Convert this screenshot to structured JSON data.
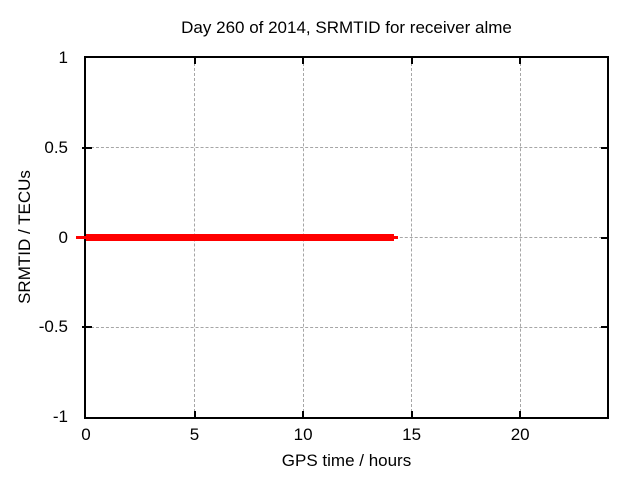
{
  "chart_data": {
    "type": "line",
    "title": "Day 260 of 2014, SRMTID for receiver alme",
    "xlabel": "GPS time / hours",
    "ylabel": "SRMTID / TECUs",
    "xlim": [
      0,
      24
    ],
    "ylim": [
      -1,
      1
    ],
    "xticks": [
      0,
      5,
      10,
      15,
      20
    ],
    "yticks": [
      1,
      0.5,
      0,
      -0.5,
      -1
    ],
    "xtick_labels": [
      "0",
      "5",
      "10",
      "15",
      "20"
    ],
    "ytick_labels": [
      "1",
      "0.5",
      "0",
      "-0.5",
      "-1"
    ],
    "grid": true,
    "legend": false,
    "background_color": "#ffffff",
    "axis_color": "#000000",
    "grid_color": "#a6a6a6",
    "series": [
      {
        "name": "SRMTID",
        "color": "#ff0000",
        "line_thickness_px": 7,
        "y": 0,
        "x_start": 0,
        "x_end": 14.2,
        "points": [
          [
            0,
            0
          ],
          [
            14.2,
            0
          ]
        ]
      }
    ]
  }
}
